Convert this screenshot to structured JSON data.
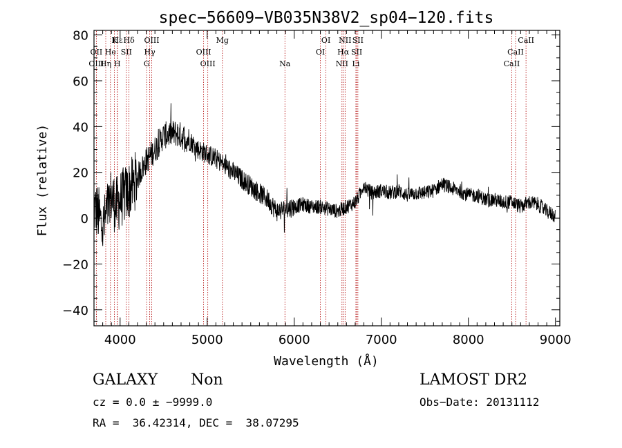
{
  "chart_data": {
    "type": "line",
    "title": "spec−56609−VB035N38V2_sp04−120.fits",
    "xlabel": "Wavelength (Å)",
    "ylabel": "Flux (relative)",
    "xlim": [
      3700,
      9050
    ],
    "ylim": [
      -47,
      82
    ],
    "x_ticks": [
      4000,
      5000,
      6000,
      7000,
      8000,
      9000
    ],
    "y_ticks": [
      -40,
      -20,
      0,
      20,
      40,
      60,
      80
    ],
    "y_tick_labels": [
      "−40",
      "−20",
      "0",
      "20",
      "40",
      "60",
      "80"
    ],
    "grid": false,
    "series": [
      {
        "x": [
          3700,
          3750,
          3800,
          3850,
          3900,
          3950,
          4000,
          4050,
          4100,
          4150,
          4200,
          4300,
          4400,
          4500,
          4600,
          4650,
          4700,
          4800,
          4900,
          5000,
          5100,
          5200,
          5300,
          5400,
          5500,
          5600,
          5700,
          5800,
          5900,
          6000,
          6100,
          6200,
          6300,
          6400,
          6500,
          6600,
          6700,
          6750,
          6800,
          6850,
          6900,
          7000,
          7100,
          7200,
          7300,
          7400,
          7500,
          7600,
          7700,
          7800,
          7900,
          8000,
          8100,
          8200,
          8300,
          8400,
          8500,
          8600,
          8700,
          8800,
          8900,
          9000
        ],
        "y": [
          5,
          2,
          -5,
          3,
          10,
          5,
          8,
          10,
          12,
          15,
          18,
          25,
          30,
          36,
          37,
          37,
          36,
          34,
          30,
          28,
          26,
          23,
          20,
          17,
          14,
          11,
          8,
          3,
          4,
          5,
          6,
          5,
          5,
          4,
          3,
          5,
          7,
          10,
          15,
          12,
          11,
          12,
          11,
          12,
          10,
          11,
          11,
          12,
          15,
          13,
          12,
          10,
          10,
          8,
          8,
          7,
          7,
          5,
          7,
          6,
          3,
          1
        ]
      }
    ],
    "lines": [
      {
        "name": "Hε",
        "x": 3970,
        "row": 0
      },
      {
        "name": "K",
        "x": 3934,
        "row": 0
      },
      {
        "name": "Hδ",
        "x": 4102,
        "row": 0
      },
      {
        "name": "OIII",
        "x": 4363,
        "row": 0
      },
      {
        "name": "Mg",
        "x": 5175,
        "row": 0
      },
      {
        "name": "OI",
        "x": 6364,
        "row": 0
      },
      {
        "name": "NII",
        "x": 6584,
        "row": 0
      },
      {
        "name": "SII",
        "x": 6731,
        "row": 0
      },
      {
        "name": "CaII",
        "x": 8662,
        "row": 0
      },
      {
        "name": "OII",
        "x": 3727,
        "row": 1
      },
      {
        "name": "He",
        "x": 3889,
        "row": 1
      },
      {
        "name": "SII",
        "x": 4072,
        "row": 1
      },
      {
        "name": "Hγ",
        "x": 4340,
        "row": 1
      },
      {
        "name": "OIII",
        "x": 4959,
        "row": 1
      },
      {
        "name": "OI",
        "x": 6300,
        "row": 1
      },
      {
        "name": "Hα",
        "x": 6563,
        "row": 1
      },
      {
        "name": "SII",
        "x": 6717,
        "row": 1
      },
      {
        "name": "CaII",
        "x": 8542,
        "row": 1
      },
      {
        "name": "OIII",
        "x": 3727,
        "row": 2
      },
      {
        "name": "Hη",
        "x": 3835,
        "row": 2
      },
      {
        "name": "H",
        "x": 3968,
        "row": 2
      },
      {
        "name": "G",
        "x": 4305,
        "row": 2
      },
      {
        "name": "OIII",
        "x": 5007,
        "row": 2
      },
      {
        "name": "Na",
        "x": 5893,
        "row": 2
      },
      {
        "name": "NII",
        "x": 6548,
        "row": 2
      },
      {
        "name": "Li",
        "x": 6708,
        "row": 2
      },
      {
        "name": "CaII",
        "x": 8498,
        "row": 2
      }
    ]
  },
  "info": {
    "classification": "GALAXY",
    "subclass": "Non",
    "survey": "LAMOST DR2",
    "redshift": "cz = 0.0 ± −9999.0",
    "obs_date": "Obs−Date: 20131112",
    "coords": "RA =  36.42314, DEC =  38.07295"
  },
  "colors": {
    "spectrum": "#000000",
    "line_markers": "#b00000"
  }
}
